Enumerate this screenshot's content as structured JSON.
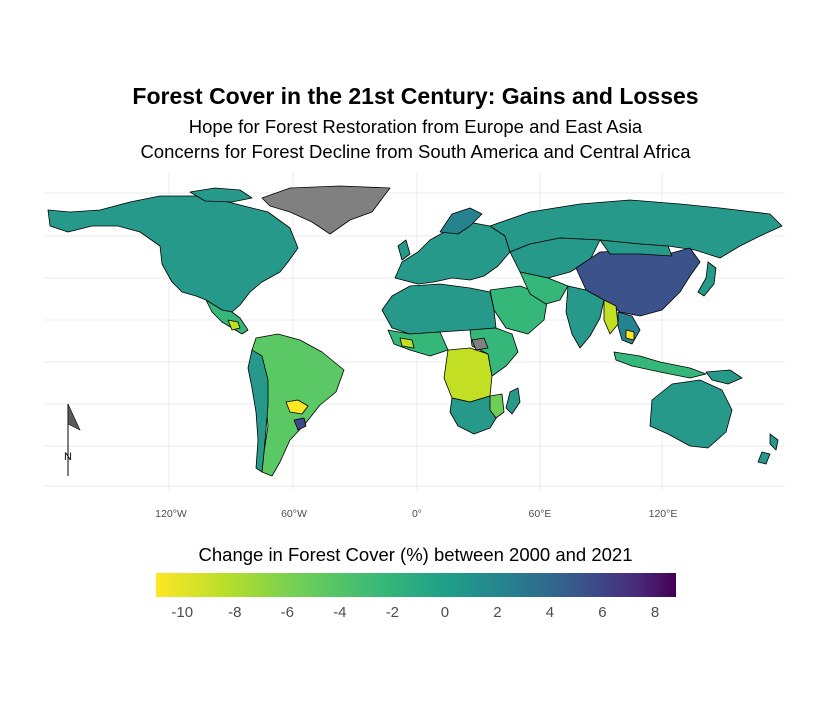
{
  "title": "Forest Cover in the 21st Century: Gains and Losses",
  "subtitle_1": "Hope for Forest Restoration from Europe and East Asia",
  "subtitle_2": "Concerns for Forest Decline from South America and Central Africa",
  "north_arrow_label": "N",
  "x_axis_ticks": [
    {
      "lon": -120,
      "label": "120°W"
    },
    {
      "lon": -60,
      "label": "60°W"
    },
    {
      "lon": 0,
      "label": "0°"
    },
    {
      "lon": 60,
      "label": "60°E"
    },
    {
      "lon": 120,
      "label": "120°E"
    }
  ],
  "legend": {
    "title": "Change in Forest Cover (%) between 2000 and 2021",
    "min": -11,
    "max": 8.8,
    "ticks": [
      -10,
      -8,
      -6,
      -4,
      -2,
      0,
      2,
      4,
      6,
      8
    ],
    "palette": [
      "#fde725",
      "#b5de2b",
      "#6ece58",
      "#35b779",
      "#1f9e89",
      "#26828e",
      "#31688e",
      "#3e4989",
      "#482878",
      "#440154"
    ]
  },
  "colors": {
    "no_data": "#808080",
    "typical_gain": "#26998a",
    "loss_moderate": "#5ac864",
    "loss_strong": "#c2df23",
    "gain_strong": "#3b528b"
  },
  "regions": [
    {
      "name": "North America",
      "change": 1.0
    },
    {
      "name": "Greenland",
      "change": null
    },
    {
      "name": "Central America",
      "change": -1.5
    },
    {
      "name": "South America (Brazil)",
      "change": -6.0
    },
    {
      "name": "Paraguay",
      "change": -10.0
    },
    {
      "name": "Europe",
      "change": 1.5
    },
    {
      "name": "Russia",
      "change": 1.0
    },
    {
      "name": "China",
      "change": 5.0
    },
    {
      "name": "Africa (Sahara)",
      "change": 0.5
    },
    {
      "name": "Central Africa",
      "change": -7.0
    },
    {
      "name": "India",
      "change": 1.0
    },
    {
      "name": "Southeast Asia",
      "change": -2.0
    },
    {
      "name": "Australia",
      "change": 1.0
    }
  ]
}
